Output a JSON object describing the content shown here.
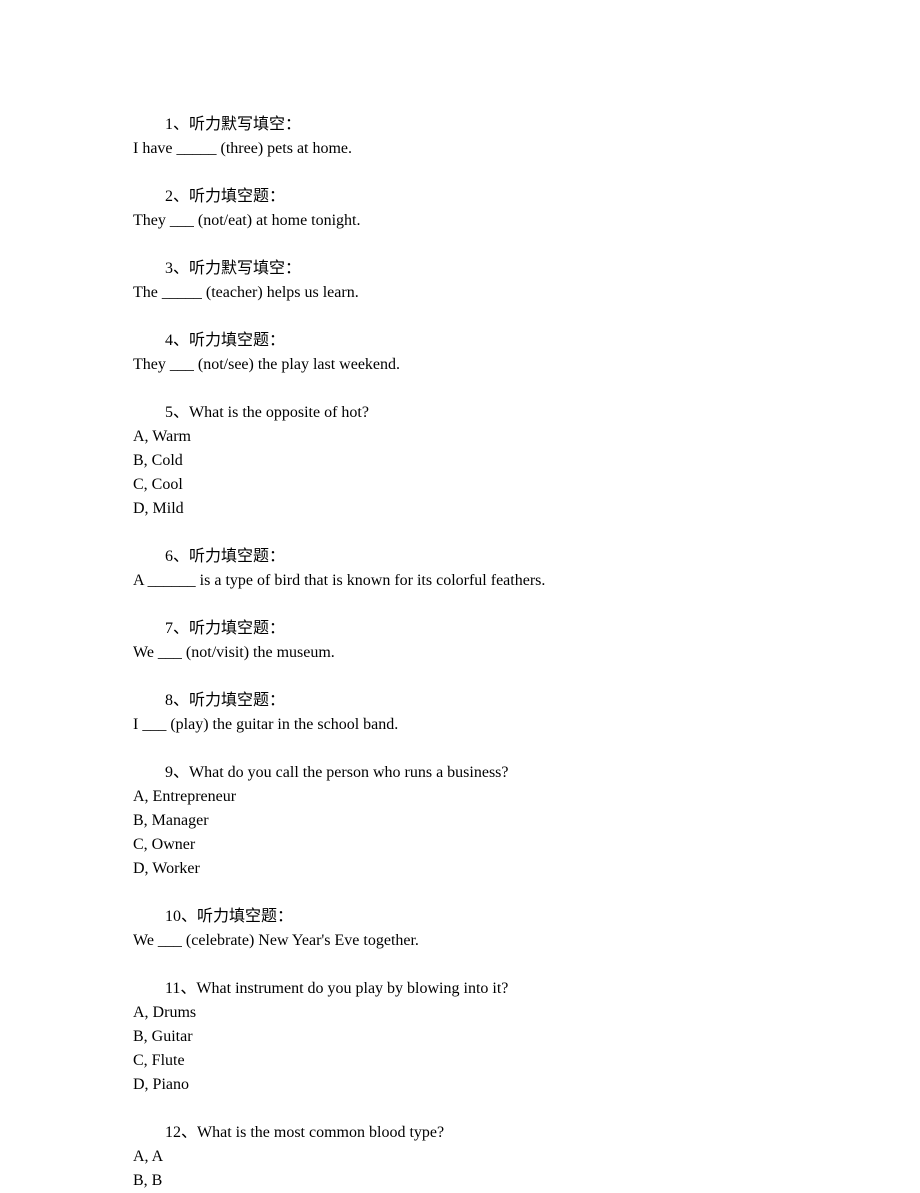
{
  "questions": [
    {
      "number": "1、",
      "type": "听力默写填空：",
      "body": "I have _____ (three) pets at home.",
      "options": []
    },
    {
      "number": "2、",
      "type": "听力填空题：",
      "body": "They ___ (not/eat) at home tonight.",
      "options": []
    },
    {
      "number": "3、",
      "type": "听力默写填空：",
      "body": "The _____ (teacher) helps us learn.",
      "options": []
    },
    {
      "number": "4、",
      "type": "听力填空题：",
      "body": "They ___ (not/see) the play last weekend.",
      "options": []
    },
    {
      "number": "5、",
      "type": "What is the opposite of hot?",
      "body": "",
      "options": [
        "A, Warm",
        "B, Cold",
        "C, Cool",
        "D, Mild"
      ]
    },
    {
      "number": "6、",
      "type": "听力填空题：",
      "body": "A ______ is a type of bird that is known for its colorful feathers.",
      "options": []
    },
    {
      "number": "7、",
      "type": "听力填空题：",
      "body": "We ___ (not/visit) the museum.",
      "options": []
    },
    {
      "number": "8、",
      "type": "听力填空题：",
      "body": "I ___ (play) the guitar in the school band.",
      "options": []
    },
    {
      "number": "9、",
      "type": "What do you call the person who runs a business?",
      "body": "",
      "options": [
        "A, Entrepreneur",
        "B, Manager",
        "C, Owner",
        "D, Worker"
      ]
    },
    {
      "number": "10、",
      "type": "听力填空题：",
      "body": "We ___ (celebrate) New Year's Eve together.",
      "options": []
    },
    {
      "number": "11、",
      "type": "What instrument do you play by blowing into it?",
      "body": "",
      "options": [
        "A, Drums",
        "B, Guitar",
        "C, Flute",
        "D, Piano"
      ]
    },
    {
      "number": "12、",
      "type": "What is the most common blood type?",
      "body": "",
      "options": [
        "A, A",
        "B, B"
      ]
    }
  ]
}
